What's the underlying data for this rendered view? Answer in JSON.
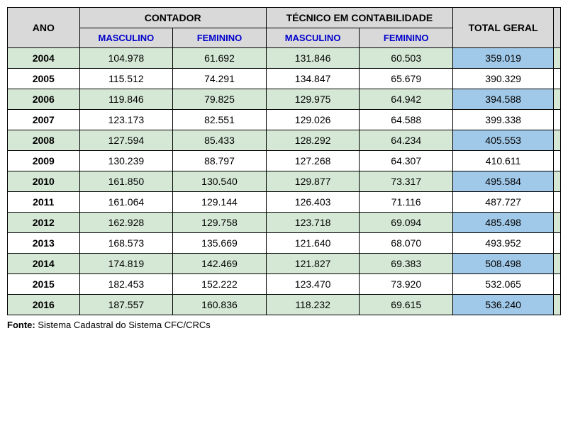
{
  "headers": {
    "ano": "ANO",
    "contador": "CONTADOR",
    "tecnico": "TÉCNICO EM CONTABILIDADE",
    "total": "TOTAL GERAL",
    "masculino": "MASCULINO",
    "feminino": "FEMININO"
  },
  "colors": {
    "header_bg": "#d9d9d9",
    "row_alt_bg": "#d5e8d5",
    "total_alt_bg": "#a0c8e8",
    "subheader_color": "#0000cc",
    "border_color": "#000000"
  },
  "rows": [
    {
      "ano": "2004",
      "cm": "104.978",
      "cf": "61.692",
      "tm": "131.846",
      "tf": "60.503",
      "tot": "359.019",
      "alt": true
    },
    {
      "ano": "2005",
      "cm": "115.512",
      "cf": "74.291",
      "tm": "134.847",
      "tf": "65.679",
      "tot": "390.329",
      "alt": false
    },
    {
      "ano": "2006",
      "cm": "119.846",
      "cf": "79.825",
      "tm": "129.975",
      "tf": "64.942",
      "tot": "394.588",
      "alt": true
    },
    {
      "ano": "2007",
      "cm": "123.173",
      "cf": "82.551",
      "tm": "129.026",
      "tf": "64.588",
      "tot": "399.338",
      "alt": false
    },
    {
      "ano": "2008",
      "cm": "127.594",
      "cf": "85.433",
      "tm": "128.292",
      "tf": "64.234",
      "tot": "405.553",
      "alt": true
    },
    {
      "ano": "2009",
      "cm": "130.239",
      "cf": "88.797",
      "tm": "127.268",
      "tf": "64.307",
      "tot": "410.611",
      "alt": false
    },
    {
      "ano": "2010",
      "cm": "161.850",
      "cf": "130.540",
      "tm": "129.877",
      "tf": "73.317",
      "tot": "495.584",
      "alt": true
    },
    {
      "ano": "2011",
      "cm": "161.064",
      "cf": "129.144",
      "tm": "126.403",
      "tf": "71.116",
      "tot": "487.727",
      "alt": false
    },
    {
      "ano": "2012",
      "cm": "162.928",
      "cf": "129.758",
      "tm": "123.718",
      "tf": "69.094",
      "tot": "485.498",
      "alt": true
    },
    {
      "ano": "2013",
      "cm": "168.573",
      "cf": "135.669",
      "tm": "121.640",
      "tf": "68.070",
      "tot": "493.952",
      "alt": false
    },
    {
      "ano": "2014",
      "cm": "174.819",
      "cf": "142.469",
      "tm": "121.827",
      "tf": "69.383",
      "tot": "508.498",
      "alt": true
    },
    {
      "ano": "2015",
      "cm": "182.453",
      "cf": "152.222",
      "tm": "123.470",
      "tf": "73.920",
      "tot": "532.065",
      "alt": false
    },
    {
      "ano": "2016",
      "cm": "187.557",
      "cf": "160.836",
      "tm": "118.232",
      "tf": "69.615",
      "tot": "536.240",
      "alt": true
    }
  ],
  "source": {
    "label": "Fonte:",
    "text": " Sistema Cadastral do Sistema CFC/CRCs"
  }
}
